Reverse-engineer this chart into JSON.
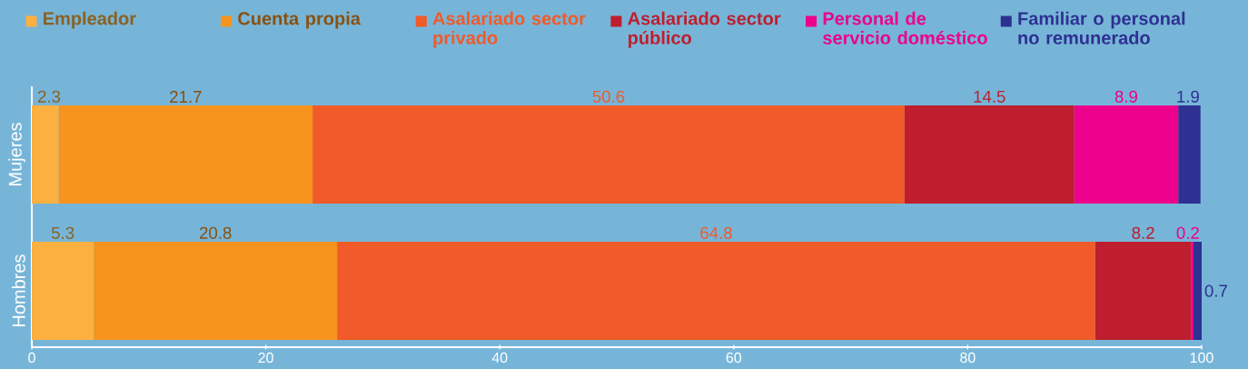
{
  "chart_data": {
    "type": "bar",
    "orientation": "horizontal",
    "stacked": true,
    "data_labels": true,
    "legend": "top",
    "categories": [
      "Mujeres",
      "Hombres"
    ],
    "series": [
      {
        "name": "Empleador",
        "color": "#fbb040",
        "values": [
          2.3,
          5.3
        ]
      },
      {
        "name": "Cuenta propia",
        "color": "#f7941d",
        "values": [
          21.7,
          20.8
        ]
      },
      {
        "name": "Asalariado sector privado",
        "color": "#f15a29",
        "values": [
          50.6,
          64.8
        ]
      },
      {
        "name": "Asalariado sector público",
        "color": "#be1e2d",
        "values": [
          14.5,
          8.2
        ]
      },
      {
        "name": "Personal de servicio doméstico",
        "color": "#ec008c",
        "values": [
          8.9,
          0.2
        ]
      },
      {
        "name": "Familiar o personal no remunerado",
        "color": "#2e3192",
        "values": [
          1.9,
          0.7
        ]
      }
    ],
    "xlim": [
      0,
      100
    ],
    "xticks": [
      0,
      20,
      40,
      60,
      80,
      100
    ]
  }
}
